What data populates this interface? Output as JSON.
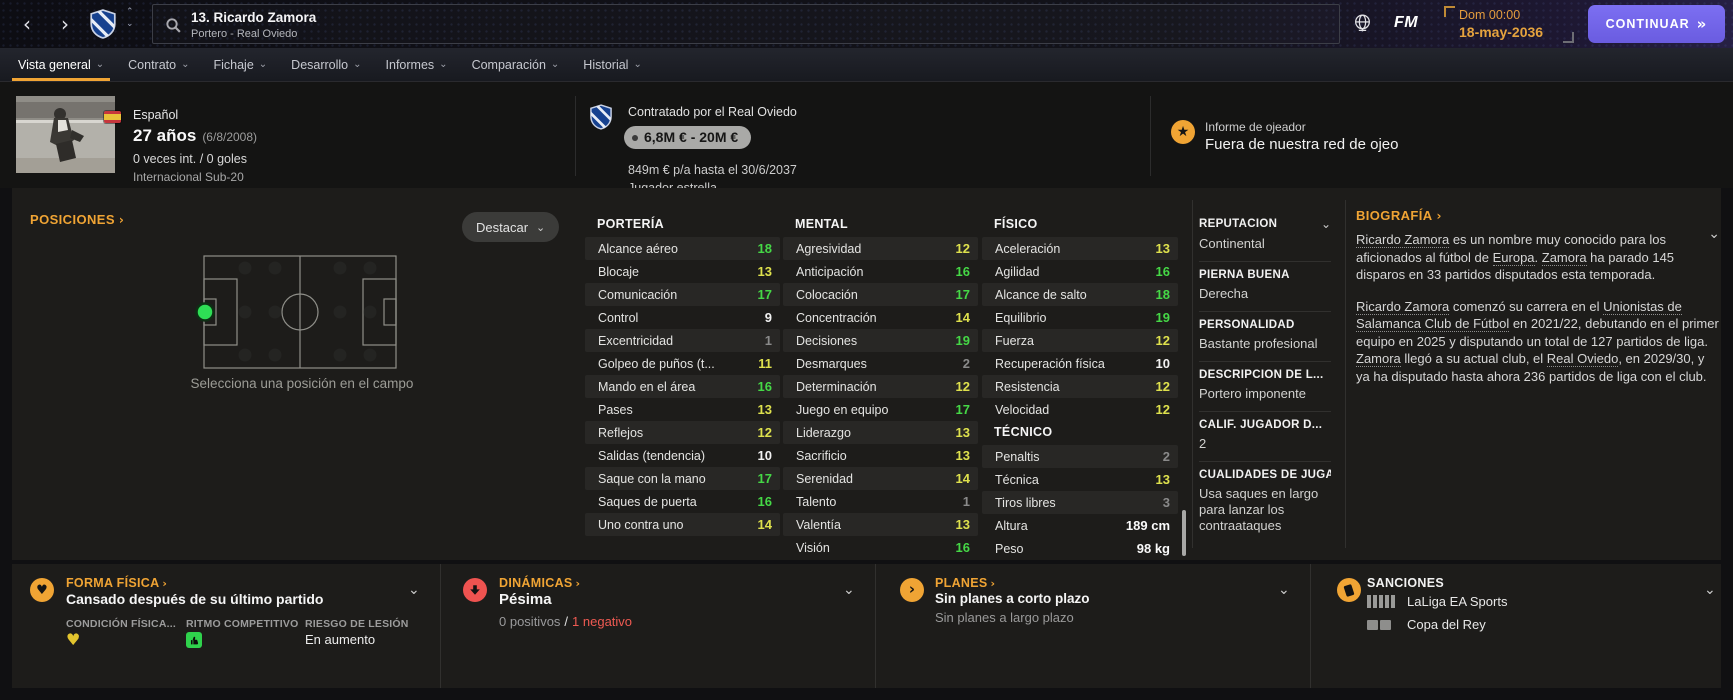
{
  "icons": {
    "back": "‹",
    "forward": "›",
    "collapse_up": "⌃",
    "collapse_down": "⌄",
    "chevron_down": "⌄",
    "continue_arrows": "»",
    "link_arrow": "›",
    "star": "★",
    "heart": "♥"
  },
  "colors": {
    "accent": "#f0a434",
    "attr_green": "#45d846",
    "attr_yellow": "#dee14d",
    "attr_white": "#f2f2f2",
    "attr_gray": "#8a8a8a",
    "negative": "#ef5a52",
    "continue_purple": "#6e61e6",
    "date_orange": "#e5a33e"
  },
  "topbar": {
    "player_name": "13. Ricardo Zamora",
    "player_sub": "Portero - Real Oviedo",
    "fm_logo": "FM",
    "clock": "Dom 00:00",
    "date": "18-may-2036",
    "continue_label": "CONTINUAR"
  },
  "nav": {
    "tabs": [
      {
        "label": "Vista general",
        "active": true
      },
      {
        "label": "Contrato",
        "active": false
      },
      {
        "label": "Fichaje",
        "active": false
      },
      {
        "label": "Desarrollo",
        "active": false
      },
      {
        "label": "Informes",
        "active": false
      },
      {
        "label": "Comparación",
        "active": false
      },
      {
        "label": "Historial",
        "active": false
      }
    ]
  },
  "profile": {
    "nationality": "Español",
    "age": "27 años",
    "birthdate": "(6/8/2008)",
    "international": "0 veces int. / 0 goles",
    "youth_international": "Internacional Sub-20"
  },
  "contract": {
    "club_line": "Contratado por el Real Oviedo",
    "value": "6,8M € - 20M €",
    "wage": "849m € p/a hasta el 30/6/2037",
    "squad_status": "Jugador estrella"
  },
  "scout": {
    "title": "Informe de ojeador",
    "status": "Fuera de nuestra red de ojeo"
  },
  "positions": {
    "title": "POSICIONES",
    "highlight_button": "Destacar",
    "caption": "Selecciona una posición en el campo"
  },
  "attributes": {
    "goalkeeping": {
      "title": "PORTERÍA",
      "rows": [
        [
          "Alcance aéreo",
          18
        ],
        [
          "Blocaje",
          13
        ],
        [
          "Comunicación",
          17
        ],
        [
          "Control",
          9
        ],
        [
          "Excentricidad",
          1
        ],
        [
          "Golpeo de puños (t...",
          11
        ],
        [
          "Mando en el área",
          16
        ],
        [
          "Pases",
          13
        ],
        [
          "Reflejos",
          12
        ],
        [
          "Salidas (tendencia)",
          10
        ],
        [
          "Saque con la mano",
          17
        ],
        [
          "Saques de puerta",
          16
        ],
        [
          "Uno contra uno",
          14
        ]
      ]
    },
    "mental": {
      "title": "MENTAL",
      "rows": [
        [
          "Agresividad",
          12
        ],
        [
          "Anticipación",
          16
        ],
        [
          "Colocación",
          17
        ],
        [
          "Concentración",
          14
        ],
        [
          "Decisiones",
          19
        ],
        [
          "Desmarques",
          2
        ],
        [
          "Determinación",
          12
        ],
        [
          "Juego en equipo",
          17
        ],
        [
          "Liderazgo",
          13
        ],
        [
          "Sacrificio",
          13
        ],
        [
          "Serenidad",
          14
        ],
        [
          "Talento",
          1
        ],
        [
          "Valentía",
          13
        ],
        [
          "Visión",
          16
        ]
      ]
    },
    "physical": {
      "title": "FÍSICO",
      "rows": [
        [
          "Aceleración",
          13
        ],
        [
          "Agilidad",
          16
        ],
        [
          "Alcance de salto",
          18
        ],
        [
          "Equilibrio",
          19
        ],
        [
          "Fuerza",
          12
        ],
        [
          "Recuperación física",
          10
        ],
        [
          "Resistencia",
          12
        ],
        [
          "Velocidad",
          12
        ]
      ]
    },
    "technical": {
      "title": "TÉCNICO",
      "rows": [
        [
          "Penaltis",
          2
        ],
        [
          "Técnica",
          13
        ],
        [
          "Tiros libres",
          3
        ]
      ]
    },
    "body": [
      [
        "Altura",
        "189 cm"
      ],
      [
        "Peso",
        "98 kg"
      ]
    ]
  },
  "info_panel": {
    "sections": [
      {
        "title": "REPUTACIÓN",
        "value": "Continental",
        "chevron": true
      },
      {
        "title": "PIERNA BUENA",
        "value": "Derecha"
      },
      {
        "title": "PERSONALIDAD",
        "value": "Bastante profesional"
      },
      {
        "title": "DESCRIPCIÓN DE L...",
        "value": "Portero imponente"
      },
      {
        "title": "CALIF. JUGADOR D...",
        "value": "2"
      },
      {
        "title": "CUALIDADES DE JUGA",
        "value": "Usa saques en largo para lanzar los contraataques"
      }
    ]
  },
  "biography": {
    "title": "BIOGRAFÍA",
    "paragraphs": [
      [
        {
          "t": "Ricardo Zamora",
          "u": 1
        },
        {
          "t": " es un nombre muy conocido para los aficionados al fútbol de "
        },
        {
          "t": "Europa",
          "u": 1
        },
        {
          "t": ". "
        },
        {
          "t": "Zamora",
          "u": 1
        },
        {
          "t": " ha parado 145 disparos en 33 partidos disputados esta temporada."
        }
      ],
      [
        {
          "t": "Ricardo Zamora",
          "u": 1
        },
        {
          "t": " comenzó su carrera en el "
        },
        {
          "t": "Unionistas de Salamanca Club de Fútbol",
          "u": 1
        },
        {
          "t": " en 2021/22, debutando en el primer equipo en 2025 y disputando un total de 127 partidos de liga. "
        },
        {
          "t": "Zamora",
          "u": 1
        },
        {
          "t": " llegó a su actual club, el "
        },
        {
          "t": "Real Oviedo",
          "u": 1
        },
        {
          "t": ", en 2029/30, y ya ha disputado hasta ahora 236 partidos de liga con el club."
        }
      ]
    ]
  },
  "panels": {
    "fitness": {
      "title": "FORMA FÍSICA",
      "status": "Cansado después de su último partido",
      "stats": [
        {
          "label": "CONDICIÓN FÍSICA...",
          "icon": "heart-condition-icon"
        },
        {
          "label": "RITMO COMPETITIVO",
          "icon": "thumb-up-icon"
        },
        {
          "label": "RIESGO DE LESIÓN",
          "value": "En aumento"
        }
      ]
    },
    "dynamics": {
      "title": "DINÁMICAS",
      "status": "Pésima",
      "positives": "0 positivos",
      "separator": "/",
      "negatives": "1 negativo"
    },
    "plans": {
      "title": "PLANES",
      "short_term": "Sin planes a corto plazo",
      "long_term": "Sin planes a largo plazo"
    },
    "suspensions": {
      "title": "SANCIONES",
      "rows": [
        {
          "count": 5,
          "label": "LaLiga EA Sports"
        },
        {
          "count": 2,
          "label": "Copa del Rey"
        }
      ]
    }
  }
}
